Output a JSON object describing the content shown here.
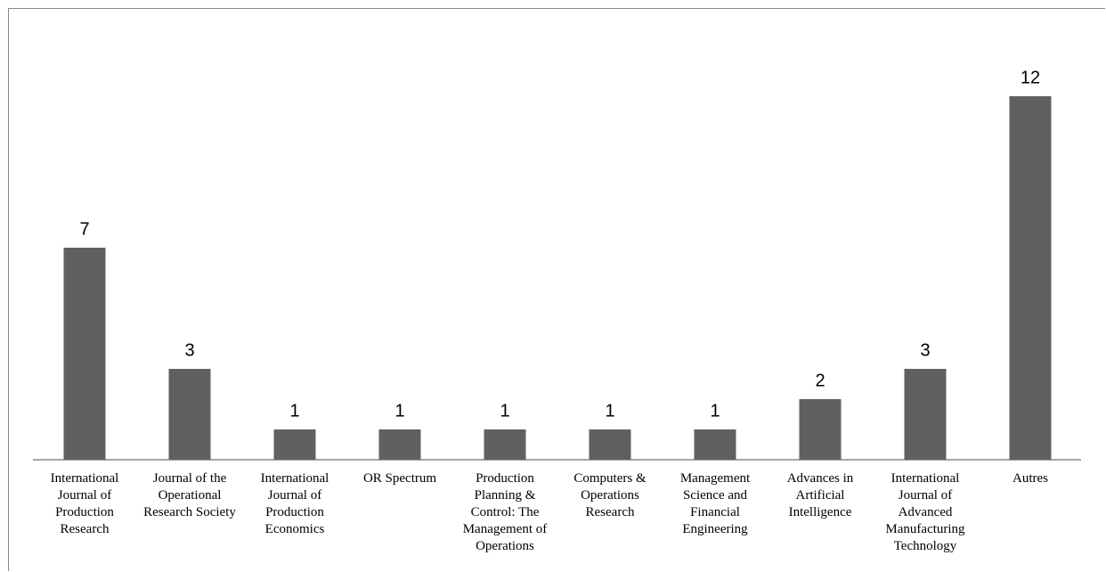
{
  "chart_data": {
    "type": "bar",
    "categories": [
      "International Journal of Production Research",
      "Journal of the Operational Research Society",
      "International Journal of Production Economics",
      "OR Spectrum",
      "Production Planning & Control: The Management of Operations",
      "Computers & Operations Research",
      "Management Science and Financial Engineering",
      "Advances in Artificial Intelligence",
      "International Journal of Advanced Manufacturing Technology",
      "Autres"
    ],
    "values": [
      7,
      3,
      1,
      1,
      1,
      1,
      1,
      2,
      3,
      12
    ],
    "color": "#606060"
  }
}
